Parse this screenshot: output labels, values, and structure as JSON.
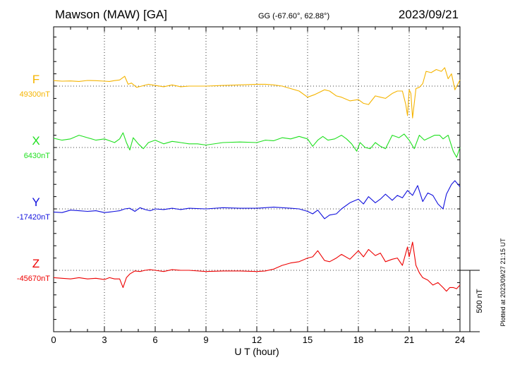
{
  "chart_data": {
    "type": "line",
    "title": "Mawson (MAW)  [GA]",
    "coords": "GG (-67.60°,  62.88°)",
    "date": "2023/09/21",
    "xlabel": "U T (hour)",
    "xlim": [
      0,
      24
    ],
    "xticks": [
      "0",
      "3",
      "6",
      "9",
      "12",
      "15",
      "18",
      "21",
      "24"
    ],
    "scale_label": "500 nT",
    "scale_nT": 500,
    "plotted_note": "Plotted at 2023/09/27 21:15 UT",
    "grid": "dotted baselines",
    "series": [
      {
        "name": "F",
        "baseline_label": "49300nT",
        "baseline_nT": 49300,
        "color": "#f5b400",
        "x": [
          0,
          0.5,
          1,
          1.5,
          2,
          2.5,
          3,
          3.3,
          3.6,
          3.9,
          4.2,
          4.4,
          4.6,
          4.9,
          5.2,
          5.6,
          6,
          6.5,
          7,
          7.5,
          8,
          9,
          10,
          11,
          12,
          12.5,
          13,
          13.5,
          14,
          14.5,
          15,
          15.4,
          15.7,
          16,
          16.3,
          16.7,
          17,
          17.5,
          18,
          18.3,
          18.6,
          19,
          19.3,
          19.6,
          20,
          20.3,
          20.6,
          20.8,
          20.9,
          21.0,
          21.1,
          21.2,
          21.4,
          21.6,
          21.8,
          22.0,
          22.3,
          22.6,
          22.9,
          23.1,
          23.3,
          23.5,
          23.7,
          24
        ],
        "y": [
          45,
          40,
          42,
          38,
          46,
          44,
          40,
          38,
          45,
          50,
          80,
          15,
          25,
          -10,
          0,
          15,
          5,
          -5,
          10,
          -5,
          0,
          0,
          5,
          10,
          15,
          15,
          10,
          0,
          -20,
          -40,
          -90,
          -70,
          -50,
          -30,
          -40,
          -80,
          -90,
          -120,
          -110,
          -140,
          -150,
          -80,
          -90,
          -100,
          -60,
          -40,
          -40,
          -150,
          -240,
          -30,
          -60,
          -260,
          -20,
          -10,
          20,
          120,
          110,
          135,
          120,
          150,
          60,
          100,
          -30,
          50
        ],
        "values": [
          45,
          40,
          42,
          38,
          46,
          44,
          40,
          38,
          45,
          50,
          80,
          15,
          25,
          -10,
          0,
          15,
          5,
          -5,
          10,
          -5,
          0,
          0,
          5,
          10,
          15,
          15,
          10,
          0,
          -20,
          -40,
          -90,
          -70,
          -50,
          -30,
          -40,
          -80,
          -90,
          -120,
          -110,
          -140,
          -150,
          -80,
          -90,
          -100,
          -60,
          -40,
          -40,
          -150,
          -240,
          -30,
          -60,
          -260,
          -20,
          -10,
          20,
          120,
          110,
          135,
          120,
          150,
          60,
          100,
          -30,
          50
        ]
      },
      {
        "name": "X",
        "baseline_label": "6430nT",
        "baseline_nT": 6430,
        "color": "#1fe01f",
        "x": [
          0,
          0.5,
          1,
          1.5,
          2,
          2.5,
          3,
          3.3,
          3.6,
          3.9,
          4.1,
          4.3,
          4.5,
          4.7,
          5.0,
          5.3,
          5.6,
          6,
          6.5,
          7,
          7.5,
          8,
          8.5,
          9,
          10,
          11,
          12,
          12.5,
          13,
          13.5,
          14,
          14.5,
          15,
          15.3,
          15.6,
          15.9,
          16.2,
          16.6,
          17,
          17.3,
          17.6,
          17.9,
          18.1,
          18.4,
          18.7,
          19,
          19.3,
          19.6,
          20,
          20.4,
          20.7,
          21.0,
          21.3,
          21.6,
          21.9,
          22.2,
          22.5,
          22.8,
          23.0,
          23.3,
          23.6,
          23.8,
          24
        ],
        "y": [
          75,
          60,
          70,
          100,
          80,
          60,
          70,
          55,
          40,
          70,
          120,
          40,
          -20,
          80,
          30,
          -10,
          40,
          60,
          30,
          50,
          40,
          30,
          30,
          20,
          40,
          45,
          40,
          60,
          55,
          80,
          70,
          90,
          70,
          10,
          60,
          90,
          60,
          70,
          100,
          70,
          30,
          -30,
          40,
          0,
          -10,
          40,
          10,
          -10,
          100,
          80,
          110,
          60,
          -10,
          100,
          60,
          80,
          100,
          100,
          70,
          100,
          -30,
          -80,
          0
        ],
        "values": [
          75,
          60,
          70,
          100,
          80,
          60,
          70,
          55,
          40,
          70,
          120,
          40,
          -20,
          80,
          30,
          -10,
          40,
          60,
          30,
          50,
          40,
          30,
          30,
          20,
          40,
          45,
          40,
          60,
          55,
          80,
          70,
          90,
          70,
          10,
          60,
          90,
          60,
          70,
          100,
          70,
          30,
          -30,
          40,
          0,
          -10,
          40,
          10,
          -10,
          100,
          80,
          110,
          60,
          -10,
          100,
          60,
          80,
          100,
          100,
          70,
          100,
          -30,
          -80,
          0
        ]
      },
      {
        "name": "Y",
        "baseline_label": "-17420nT",
        "baseline_nT": -17420,
        "color": "#1010dd",
        "x": [
          0,
          0.5,
          1,
          1.5,
          2,
          2.5,
          3,
          3.3,
          3.6,
          3.9,
          4.2,
          4.5,
          4.8,
          5.1,
          5.4,
          5.7,
          6,
          6.5,
          7,
          7.5,
          8,
          9,
          10,
          11,
          12,
          12.5,
          13,
          13.5,
          14,
          14.5,
          15,
          15.3,
          15.6,
          16,
          16.3,
          16.7,
          17,
          17.5,
          18,
          18.3,
          18.6,
          19,
          19.3,
          19.6,
          20,
          20.3,
          20.6,
          20.9,
          21.2,
          21.5,
          21.8,
          22.1,
          22.4,
          22.7,
          23,
          23.2,
          23.5,
          23.7,
          24
        ],
        "y": [
          -25,
          -30,
          -10,
          -15,
          -20,
          -15,
          -30,
          -25,
          -20,
          -15,
          0,
          5,
          -20,
          10,
          -5,
          -15,
          0,
          -5,
          5,
          -5,
          5,
          0,
          10,
          5,
          5,
          10,
          15,
          10,
          5,
          0,
          -20,
          -40,
          -10,
          -80,
          -50,
          -40,
          0,
          50,
          80,
          40,
          100,
          50,
          80,
          120,
          70,
          110,
          90,
          150,
          110,
          190,
          60,
          130,
          110,
          40,
          0,
          120,
          200,
          230,
          180
        ],
        "values": [
          -25,
          -30,
          -10,
          -15,
          -20,
          -15,
          -30,
          -25,
          -20,
          -15,
          0,
          5,
          -20,
          10,
          -5,
          -15,
          0,
          -5,
          5,
          -5,
          5,
          0,
          10,
          5,
          5,
          10,
          15,
          10,
          5,
          0,
          -20,
          -40,
          -10,
          -80,
          -50,
          -40,
          0,
          50,
          80,
          40,
          100,
          50,
          80,
          120,
          70,
          110,
          90,
          150,
          110,
          190,
          60,
          130,
          110,
          40,
          0,
          120,
          200,
          230,
          180
        ]
      },
      {
        "name": "Z",
        "baseline_label": "-45670nT",
        "baseline_nT": -45670,
        "color": "#ee0000",
        "x": [
          0,
          0.5,
          1,
          1.5,
          2,
          2.5,
          3,
          3.3,
          3.6,
          3.9,
          4.1,
          4.3,
          4.5,
          4.8,
          5.1,
          5.4,
          5.7,
          6,
          6.5,
          7,
          7.5,
          8,
          9,
          10,
          11,
          12,
          12.5,
          13,
          13.5,
          14,
          14.5,
          15,
          15.3,
          15.6,
          16,
          16.3,
          16.7,
          17,
          17.5,
          18,
          18.3,
          18.6,
          19,
          19.3,
          19.6,
          20,
          20.3,
          20.6,
          20.9,
          21.0,
          21.1,
          21.2,
          21.4,
          21.6,
          21.8,
          22.1,
          22.4,
          22.7,
          23,
          23.2,
          23.4,
          23.6,
          23.8,
          24
        ],
        "y": [
          -60,
          -65,
          -70,
          -60,
          -70,
          -65,
          -75,
          -60,
          -70,
          -70,
          -140,
          -60,
          -30,
          -5,
          -10,
          0,
          5,
          0,
          -10,
          5,
          0,
          0,
          -10,
          -5,
          -5,
          -10,
          -5,
          10,
          40,
          60,
          70,
          100,
          110,
          160,
          80,
          70,
          100,
          130,
          90,
          160,
          110,
          170,
          120,
          140,
          70,
          90,
          100,
          40,
          190,
          110,
          170,
          230,
          40,
          -20,
          -60,
          -80,
          -120,
          -100,
          -140,
          -170,
          -140,
          -140,
          -150,
          -120
        ],
        "values": [
          -60,
          -65,
          -70,
          -60,
          -70,
          -65,
          -75,
          -60,
          -70,
          -70,
          -140,
          -60,
          -30,
          -5,
          -10,
          0,
          5,
          0,
          -10,
          5,
          0,
          0,
          -10,
          -5,
          -5,
          -10,
          -5,
          10,
          40,
          60,
          70,
          100,
          110,
          160,
          80,
          70,
          100,
          130,
          90,
          160,
          110,
          170,
          120,
          140,
          70,
          90,
          100,
          40,
          190,
          110,
          170,
          230,
          40,
          -20,
          -60,
          -80,
          -120,
          -100,
          -140,
          -170,
          -140,
          -140,
          -150,
          -120
        ]
      }
    ]
  }
}
